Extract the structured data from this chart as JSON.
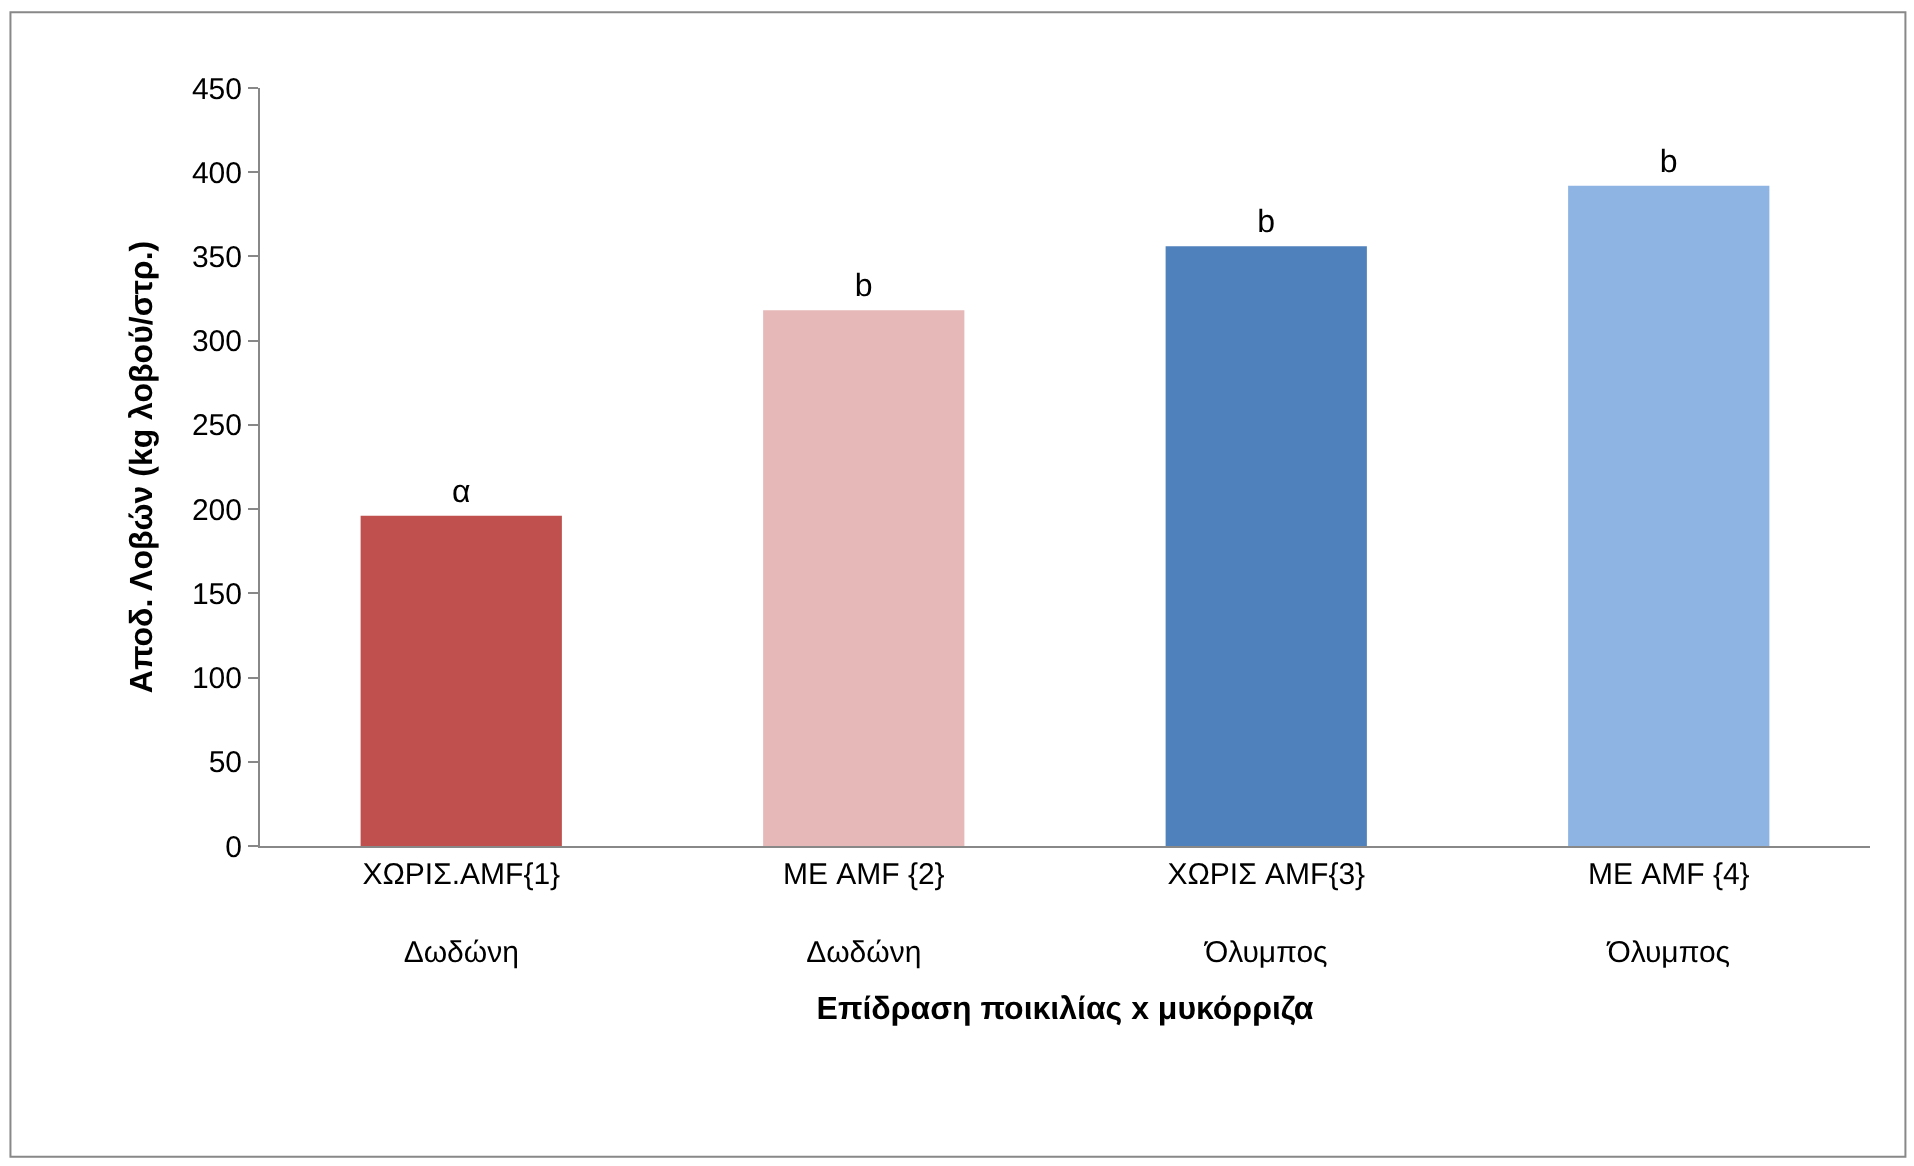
{
  "chart_data": {
    "type": "bar",
    "categories": [
      "ΧΩΡΙΣ.AMF{1}\nΔωδώνη",
      "ΜΕ AMF {2}\nΔωδώνη",
      "ΧΩΡΙΣ AMF{3}\nΌλυμπος",
      "ΜΕ AMF {4}\nΌλυμπος"
    ],
    "values": [
      196,
      318,
      356,
      392
    ],
    "colors": [
      "#c0504d",
      "#e6b9b8",
      "#4f81bd",
      "#8eb4e3"
    ],
    "value_labels": [
      "α",
      "b",
      "b",
      "b"
    ],
    "xlabel": "Επίδραση ποικιλίας x μυκόρριζα",
    "ylabel": "Αποδ. Λοβών (kg λοβού/στρ.)",
    "ylim": [
      0,
      450
    ],
    "yticks": [
      0,
      50,
      100,
      150,
      200,
      250,
      300,
      350,
      400,
      450
    ]
  }
}
